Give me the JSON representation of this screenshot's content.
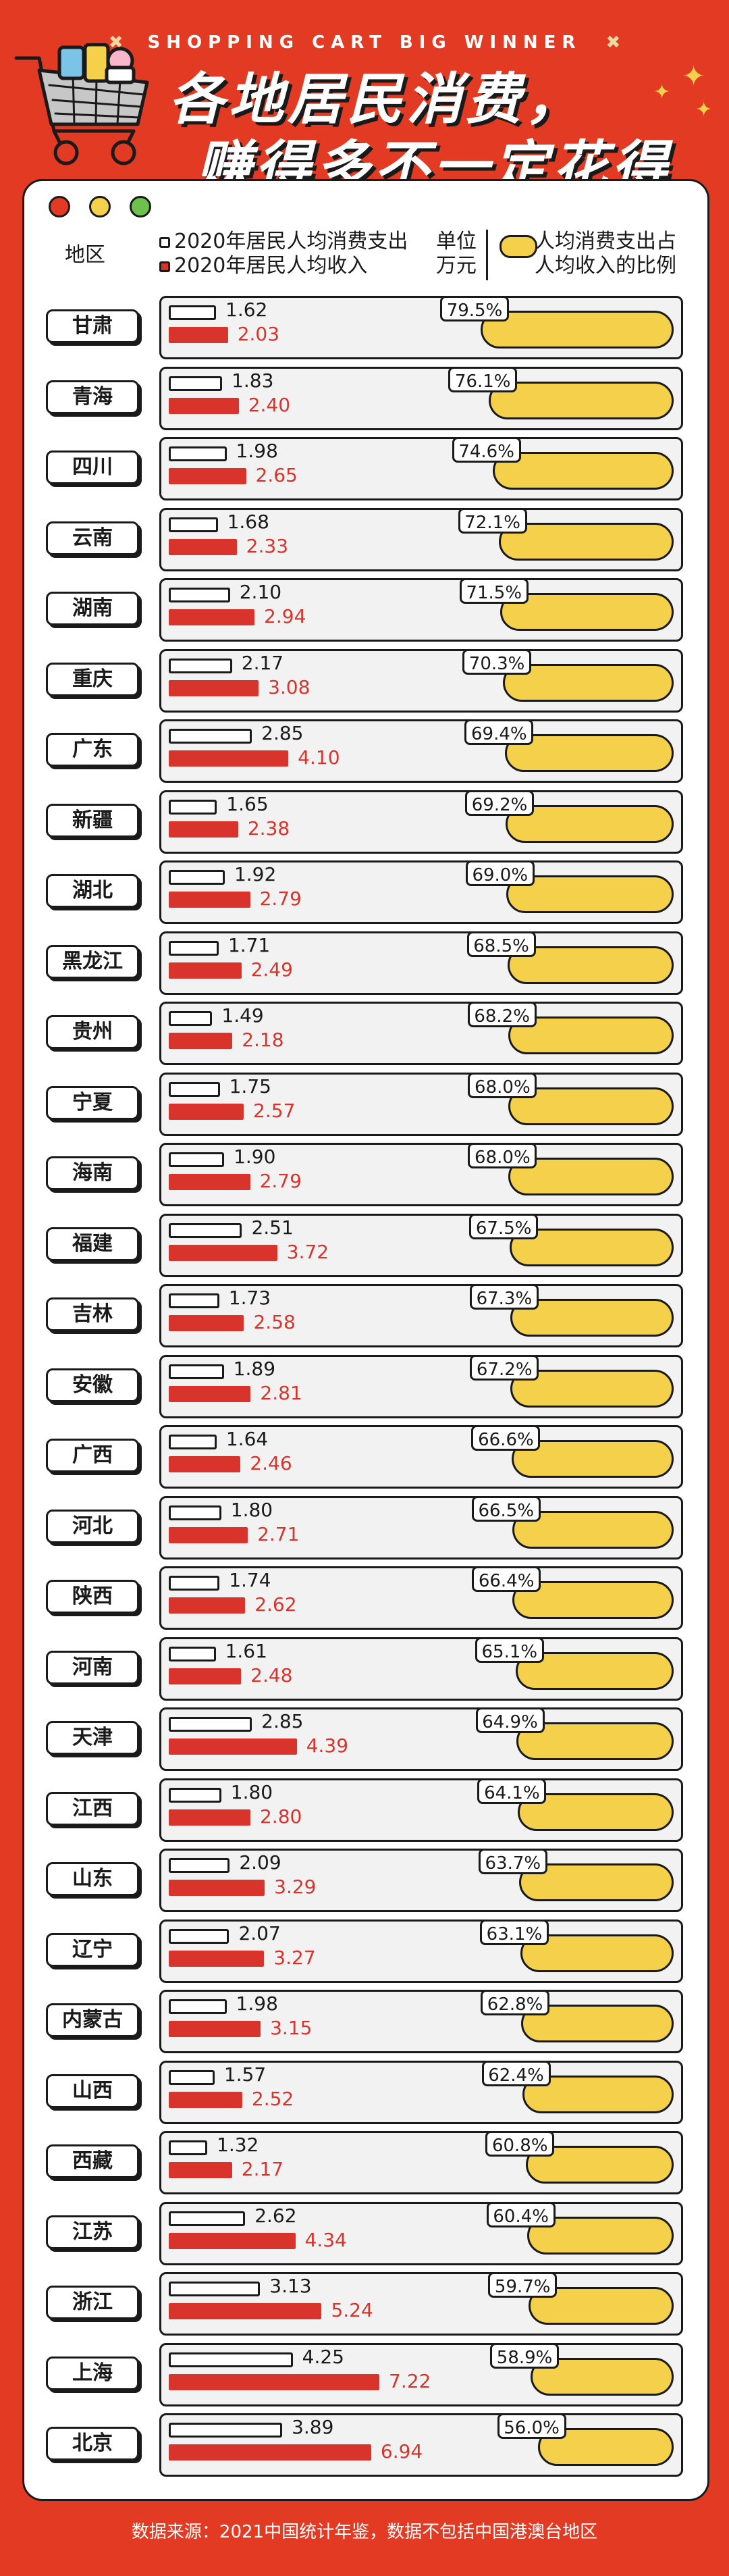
{
  "banner": {
    "text": "SHOPPING CART BIG WINNER",
    "mark": "✖"
  },
  "title": {
    "line1": "各地居民消费，",
    "line2": "赚得多不一定花得多"
  },
  "header": {
    "region_label": "地区",
    "legend_spend": "2020年居民人均消费支出",
    "legend_income": "2020年居民人均收入",
    "unit_line1": "单位",
    "unit_line2": "万元",
    "ratio_line1": "人均消费支出占",
    "ratio_line2": "人均收入的比例"
  },
  "colors": {
    "background": "#e23a23",
    "income": "#d9342b",
    "ratio": "#f5d14b"
  },
  "chart_data": {
    "type": "bar",
    "series": [
      {
        "name": "2020年居民人均消费支出",
        "values": [
          1.62,
          1.83,
          1.98,
          1.68,
          2.1,
          2.17,
          2.85,
          1.65,
          1.92,
          1.71,
          1.49,
          1.75,
          1.9,
          2.51,
          1.73,
          1.89,
          1.64,
          1.8,
          1.74,
          1.61,
          2.85,
          1.8,
          2.09,
          2.07,
          1.98,
          1.57,
          1.32,
          2.62,
          3.13,
          4.25,
          3.89
        ]
      },
      {
        "name": "2020年居民人均收入",
        "values": [
          2.03,
          2.4,
          2.65,
          2.33,
          2.94,
          3.08,
          4.1,
          2.38,
          2.79,
          2.49,
          2.18,
          2.57,
          2.79,
          3.72,
          2.58,
          2.81,
          2.46,
          2.71,
          2.62,
          2.48,
          4.39,
          2.8,
          3.29,
          3.27,
          3.15,
          2.52,
          2.17,
          4.34,
          5.24,
          7.22,
          6.94
        ]
      }
    ],
    "categories": [
      "甘肃",
      "青海",
      "四川",
      "云南",
      "湖南",
      "重庆",
      "广东",
      "新疆",
      "湖北",
      "黑龙江",
      "贵州",
      "宁夏",
      "海南",
      "福建",
      "吉林",
      "安徽",
      "广西",
      "河北",
      "陕西",
      "河南",
      "天津",
      "江西",
      "山东",
      "辽宁",
      "内蒙古",
      "山西",
      "西藏",
      "江苏",
      "浙江",
      "上海",
      "北京"
    ],
    "ratio": [
      "79.5%",
      "76.1%",
      "74.6%",
      "72.1%",
      "71.5%",
      "70.3%",
      "69.4%",
      "69.2%",
      "69.0%",
      "68.5%",
      "68.2%",
      "68.0%",
      "68.0%",
      "67.5%",
      "67.3%",
      "67.2%",
      "66.6%",
      "66.5%",
      "66.4%",
      "65.1%",
      "64.9%",
      "64.1%",
      "63.7%",
      "63.1%",
      "62.8%",
      "62.4%",
      "60.8%",
      "60.4%",
      "59.7%",
      "58.9%",
      "56.0%"
    ],
    "ratio_values": [
      79.5,
      76.1,
      74.6,
      72.1,
      71.5,
      70.3,
      69.4,
      69.2,
      69.0,
      68.5,
      68.2,
      68.0,
      68.0,
      67.5,
      67.3,
      67.2,
      66.6,
      66.5,
      66.4,
      65.1,
      64.9,
      64.1,
      63.7,
      63.1,
      62.8,
      62.4,
      60.8,
      60.4,
      59.7,
      58.9,
      56.0
    ],
    "ylabel": "万元"
  },
  "source": "数据来源：2021中国统计年鉴，数据不包括中国港澳台地区"
}
